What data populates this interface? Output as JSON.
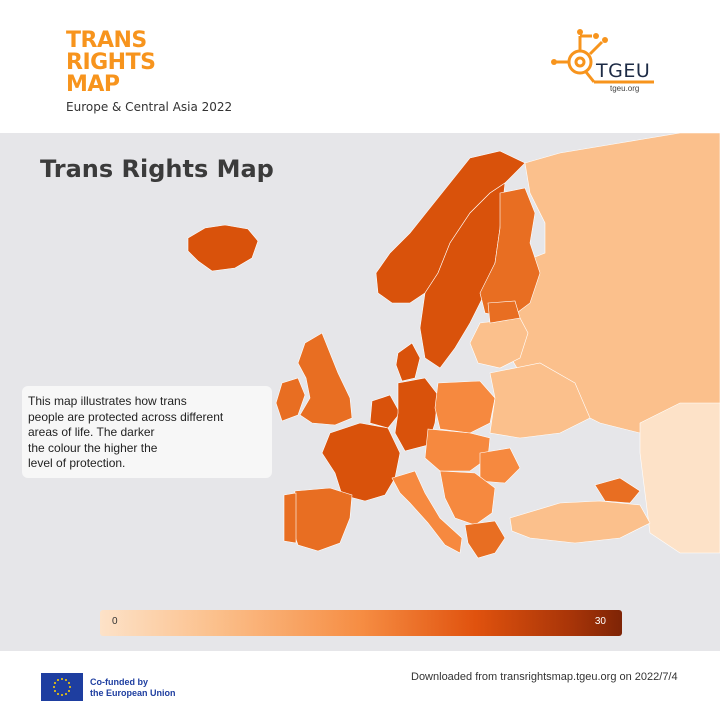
{
  "header": {
    "brand_line1": "TRANS",
    "brand_line2": "RIGHTS",
    "brand_line3": "MAP",
    "subtitle": "Europe & Central Asia 2022",
    "logo_name": "TGEU",
    "logo_url": "tgeu.org"
  },
  "map": {
    "title": "Trans Rights Map",
    "info_lines": [
      "This map illustrates how trans",
      "people are protected across different",
      "areas of life. The darker",
      "the colour the higher the",
      "level of protection."
    ],
    "legend_min": "0",
    "legend_max": "30",
    "colors": {
      "background": "#e6e6e9",
      "lowest": "#fde2c8",
      "low": "#fbc08c",
      "medium": "#f6893f",
      "high": "#e86e22",
      "highest": "#d9520b"
    }
  },
  "footer": {
    "eu_line1": "Co-funded by",
    "eu_line2": "the European Union",
    "download_text": "Downloaded from transrightsmap.tgeu.org on 2022/7/4"
  }
}
